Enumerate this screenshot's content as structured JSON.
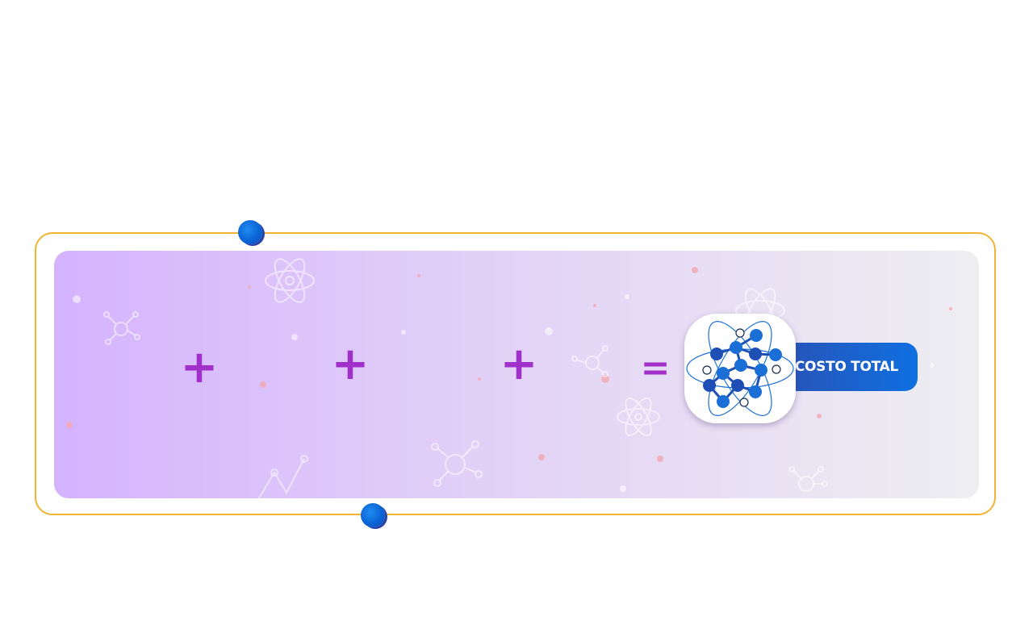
{
  "equation": {
    "operators": [
      "+",
      "+",
      "+",
      "="
    ],
    "result_label": "COSTO TOTAL"
  },
  "icons": {
    "result": "molecule-atom-icon",
    "background": [
      "atom-icon",
      "molecule-icon",
      "line-graph-icon"
    ]
  },
  "colors": {
    "frame_border": "#f2b233",
    "operator": "#a030c9",
    "accent_blue": "#0f6fe0",
    "gradient_start": "#d4b3fd",
    "gradient_end": "#eeeef1"
  }
}
